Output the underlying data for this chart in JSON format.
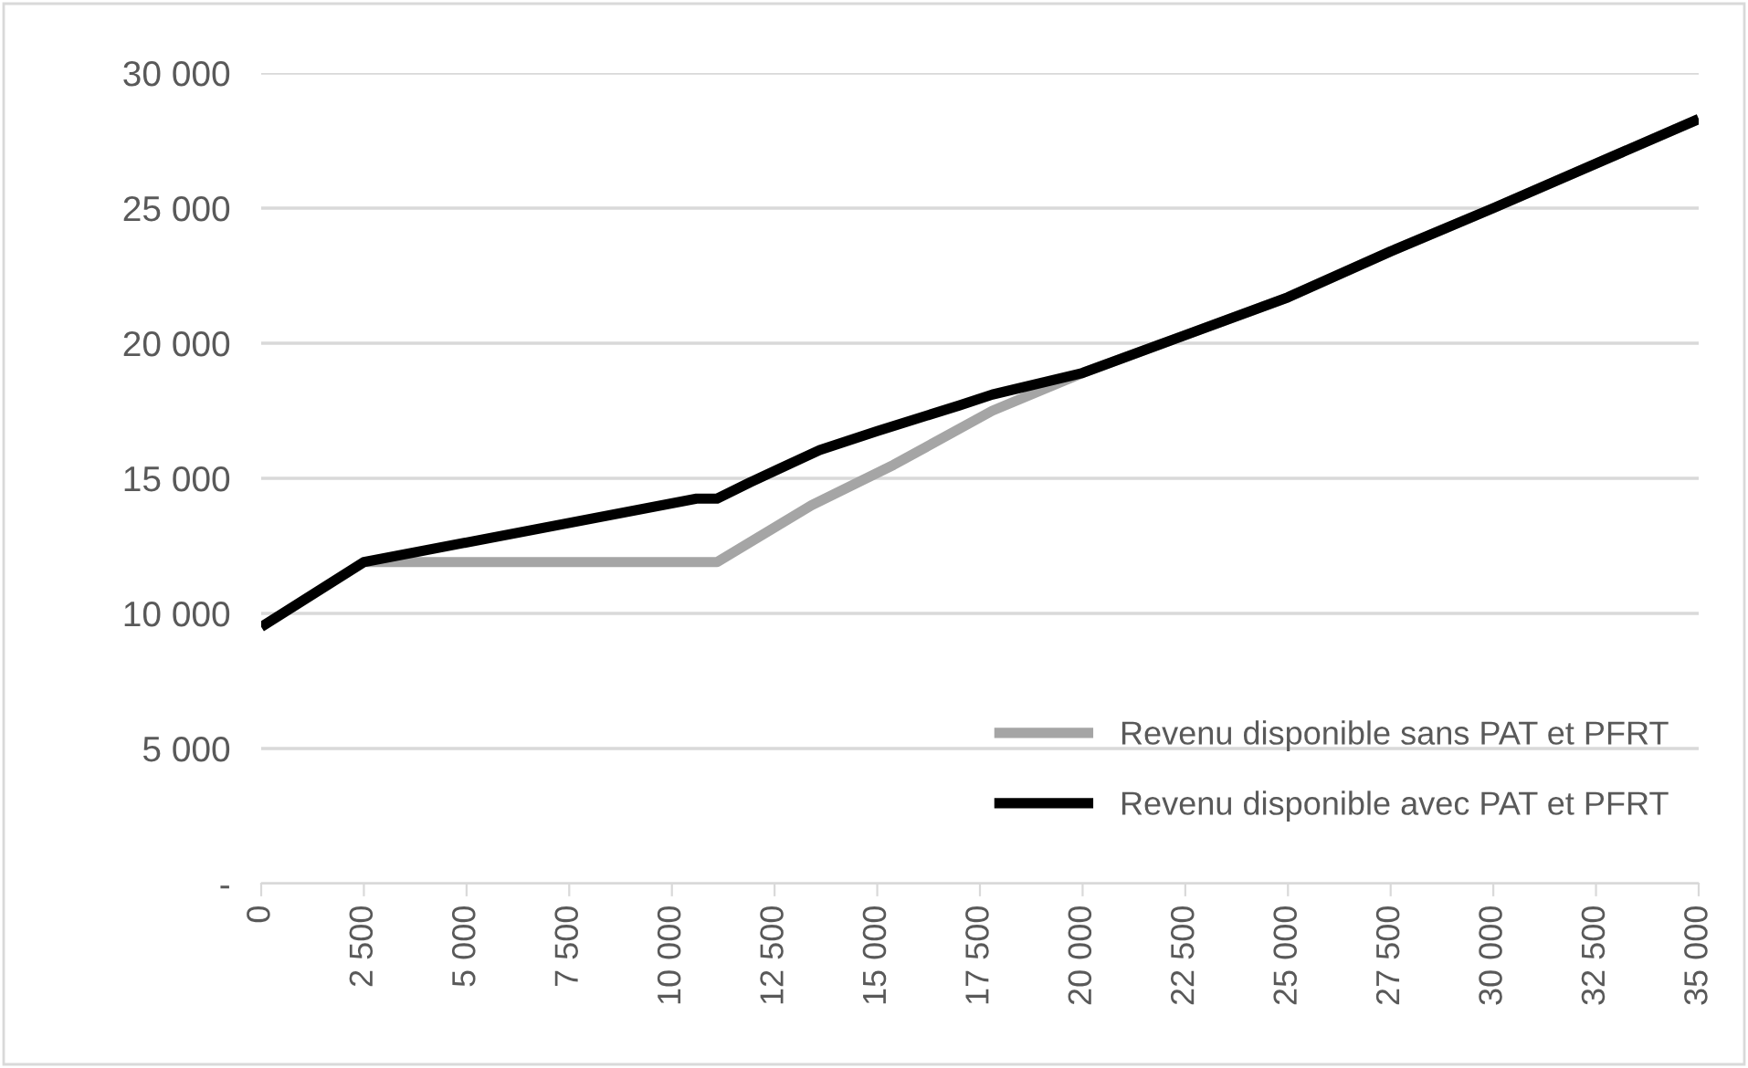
{
  "chart_data": {
    "type": "line",
    "series": [
      {
        "name": "Revenu disponible sans PAT et PFRT",
        "color": "#a5a5a5",
        "x": [
          2500,
          11100,
          13400,
          15400,
          17800,
          20000,
          22500,
          25000,
          27500,
          30000,
          35000
        ],
        "values": [
          11900,
          11900,
          14000,
          15500,
          17500,
          18900,
          20300,
          21700,
          23400,
          25000,
          28300
        ]
      },
      {
        "name": "Revenu disponible avec PAT et PFRT",
        "color": "#000000",
        "x": [
          0,
          2500,
          10600,
          11100,
          11900,
          13600,
          15000,
          17000,
          17800,
          20000,
          22500,
          25000,
          27500,
          30000,
          35000
        ],
        "values": [
          9500,
          11900,
          14250,
          14250,
          14850,
          16050,
          16750,
          17700,
          18100,
          18900,
          20300,
          21700,
          23400,
          25000,
          28300
        ]
      }
    ],
    "xlim": [
      0,
      35000
    ],
    "xticks": [
      0,
      {
        "value": 2500,
        "label": "2 500"
      },
      {
        "value": 5000,
        "label": "5 000"
      },
      {
        "value": 7500,
        "label": "7 500"
      },
      {
        "value": 10000,
        "label": "10 000"
      },
      {
        "value": 12500,
        "label": "12 500"
      },
      {
        "value": 15000,
        "label": "15 000"
      },
      {
        "value": 17500,
        "label": "17 500"
      },
      {
        "value": 20000,
        "label": "20 000"
      },
      {
        "value": 22500,
        "label": "22 500"
      },
      {
        "value": 25000,
        "label": "25 000"
      },
      {
        "value": 27500,
        "label": "27 500"
      },
      {
        "value": 30000,
        "label": "30 000"
      },
      {
        "value": 32500,
        "label": "32 500"
      },
      {
        "value": 35000,
        "label": "35 000"
      }
    ],
    "ylim": [
      0,
      30000
    ],
    "yticks": [
      {
        "value": 0,
        "label": "-"
      },
      {
        "value": 5000,
        "label": "5 000"
      },
      {
        "value": 10000,
        "label": "10 000"
      },
      {
        "value": 15000,
        "label": "15 000"
      },
      {
        "value": 20000,
        "label": "20 000"
      },
      {
        "value": 25000,
        "label": "25 000"
      },
      {
        "value": 30000,
        "label": "30 000"
      }
    ],
    "grid": "y",
    "legend": "bottom right",
    "line_style": "solid",
    "marker": "none"
  }
}
